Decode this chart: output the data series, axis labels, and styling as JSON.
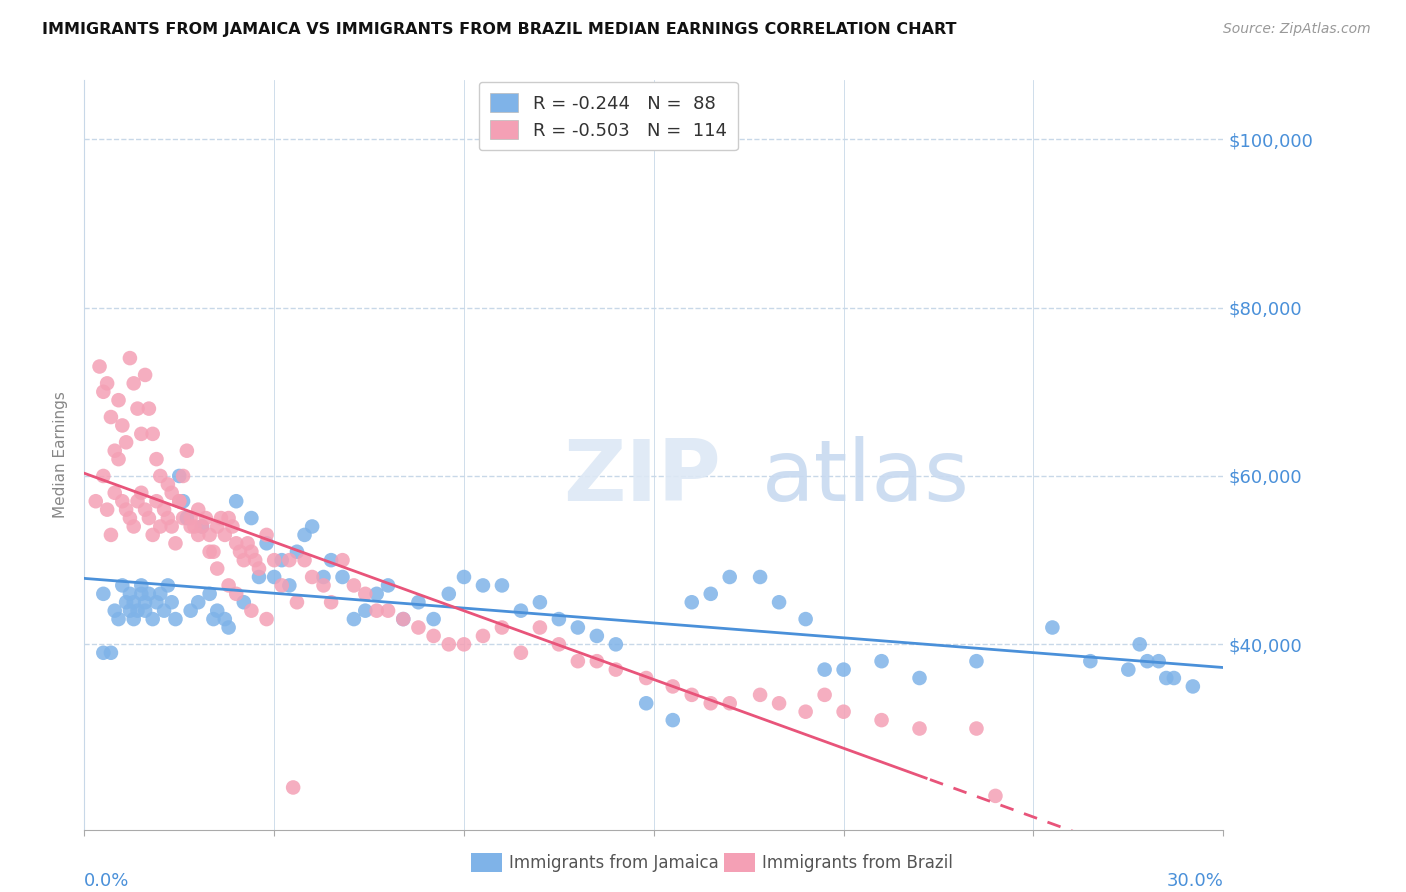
{
  "title": "IMMIGRANTS FROM JAMAICA VS IMMIGRANTS FROM BRAZIL MEDIAN EARNINGS CORRELATION CHART",
  "source": "Source: ZipAtlas.com",
  "ylabel": "Median Earnings",
  "ymin": 18000,
  "ymax": 107000,
  "xmin": 0.0,
  "xmax": 0.3,
  "jamaica_color": "#7fb3e8",
  "brazil_color": "#f4a0b5",
  "jamaica_R": -0.244,
  "jamaica_N": 88,
  "brazil_R": -0.503,
  "brazil_N": 114,
  "trendline_jamaica_color": "#4a90d9",
  "trendline_brazil_color": "#e8547a",
  "watermark_zip": "ZIP",
  "watermark_atlas": "atlas",
  "axis_color": "#4a90d9",
  "grid_color": "#c8d8e8",
  "background_color": "#ffffff",
  "jamaica_x": [
    0.005,
    0.008,
    0.009,
    0.01,
    0.011,
    0.012,
    0.012,
    0.013,
    0.013,
    0.014,
    0.015,
    0.015,
    0.016,
    0.016,
    0.017,
    0.018,
    0.019,
    0.02,
    0.021,
    0.022,
    0.023,
    0.024,
    0.025,
    0.026,
    0.027,
    0.028,
    0.03,
    0.031,
    0.033,
    0.034,
    0.035,
    0.037,
    0.038,
    0.04,
    0.042,
    0.044,
    0.046,
    0.048,
    0.05,
    0.052,
    0.054,
    0.056,
    0.058,
    0.06,
    0.063,
    0.065,
    0.068,
    0.071,
    0.074,
    0.077,
    0.08,
    0.084,
    0.088,
    0.092,
    0.096,
    0.1,
    0.105,
    0.11,
    0.115,
    0.12,
    0.125,
    0.13,
    0.135,
    0.14,
    0.148,
    0.155,
    0.16,
    0.165,
    0.17,
    0.178,
    0.183,
    0.19,
    0.195,
    0.2,
    0.21,
    0.22,
    0.235,
    0.255,
    0.265,
    0.275,
    0.278,
    0.28,
    0.283,
    0.285,
    0.287,
    0.292,
    0.005,
    0.007
  ],
  "jamaica_y": [
    46000,
    44000,
    43000,
    47000,
    45000,
    44000,
    46000,
    45000,
    43000,
    44000,
    46000,
    47000,
    45000,
    44000,
    46000,
    43000,
    45000,
    46000,
    44000,
    47000,
    45000,
    43000,
    60000,
    57000,
    55000,
    44000,
    45000,
    54000,
    46000,
    43000,
    44000,
    43000,
    42000,
    57000,
    45000,
    55000,
    48000,
    52000,
    48000,
    50000,
    47000,
    51000,
    53000,
    54000,
    48000,
    50000,
    48000,
    43000,
    44000,
    46000,
    47000,
    43000,
    45000,
    43000,
    46000,
    48000,
    47000,
    47000,
    44000,
    45000,
    43000,
    42000,
    41000,
    40000,
    33000,
    31000,
    45000,
    46000,
    48000,
    48000,
    45000,
    43000,
    37000,
    37000,
    38000,
    36000,
    38000,
    42000,
    38000,
    37000,
    40000,
    38000,
    38000,
    36000,
    36000,
    35000,
    39000,
    39000
  ],
  "brazil_x": [
    0.003,
    0.005,
    0.006,
    0.007,
    0.008,
    0.009,
    0.01,
    0.011,
    0.012,
    0.013,
    0.014,
    0.015,
    0.016,
    0.017,
    0.018,
    0.019,
    0.02,
    0.021,
    0.022,
    0.023,
    0.024,
    0.025,
    0.026,
    0.027,
    0.028,
    0.029,
    0.03,
    0.031,
    0.032,
    0.033,
    0.034,
    0.035,
    0.036,
    0.037,
    0.038,
    0.039,
    0.04,
    0.041,
    0.042,
    0.043,
    0.044,
    0.045,
    0.046,
    0.048,
    0.05,
    0.052,
    0.054,
    0.056,
    0.058,
    0.06,
    0.063,
    0.065,
    0.068,
    0.071,
    0.074,
    0.077,
    0.08,
    0.084,
    0.088,
    0.092,
    0.096,
    0.1,
    0.105,
    0.11,
    0.115,
    0.12,
    0.125,
    0.13,
    0.135,
    0.14,
    0.148,
    0.155,
    0.16,
    0.165,
    0.17,
    0.178,
    0.183,
    0.19,
    0.195,
    0.2,
    0.21,
    0.22,
    0.235,
    0.004,
    0.005,
    0.006,
    0.007,
    0.008,
    0.009,
    0.01,
    0.011,
    0.012,
    0.013,
    0.014,
    0.015,
    0.016,
    0.017,
    0.018,
    0.019,
    0.02,
    0.022,
    0.023,
    0.025,
    0.026,
    0.028,
    0.03,
    0.033,
    0.035,
    0.038,
    0.04,
    0.044,
    0.048,
    0.055,
    0.24
  ],
  "brazil_y": [
    57000,
    60000,
    56000,
    53000,
    58000,
    62000,
    57000,
    56000,
    55000,
    54000,
    57000,
    58000,
    56000,
    55000,
    53000,
    57000,
    54000,
    56000,
    55000,
    54000,
    52000,
    57000,
    60000,
    63000,
    55000,
    54000,
    56000,
    54000,
    55000,
    53000,
    51000,
    54000,
    55000,
    53000,
    55000,
    54000,
    52000,
    51000,
    50000,
    52000,
    51000,
    50000,
    49000,
    53000,
    50000,
    47000,
    50000,
    45000,
    50000,
    48000,
    47000,
    45000,
    50000,
    47000,
    46000,
    44000,
    44000,
    43000,
    42000,
    41000,
    40000,
    40000,
    41000,
    42000,
    39000,
    42000,
    40000,
    38000,
    38000,
    37000,
    36000,
    35000,
    34000,
    33000,
    33000,
    34000,
    33000,
    32000,
    34000,
    32000,
    31000,
    30000,
    30000,
    73000,
    70000,
    71000,
    67000,
    63000,
    69000,
    66000,
    64000,
    74000,
    71000,
    68000,
    65000,
    72000,
    68000,
    65000,
    62000,
    60000,
    59000,
    58000,
    57000,
    55000,
    54000,
    53000,
    51000,
    49000,
    47000,
    46000,
    44000,
    43000,
    23000,
    22000
  ]
}
